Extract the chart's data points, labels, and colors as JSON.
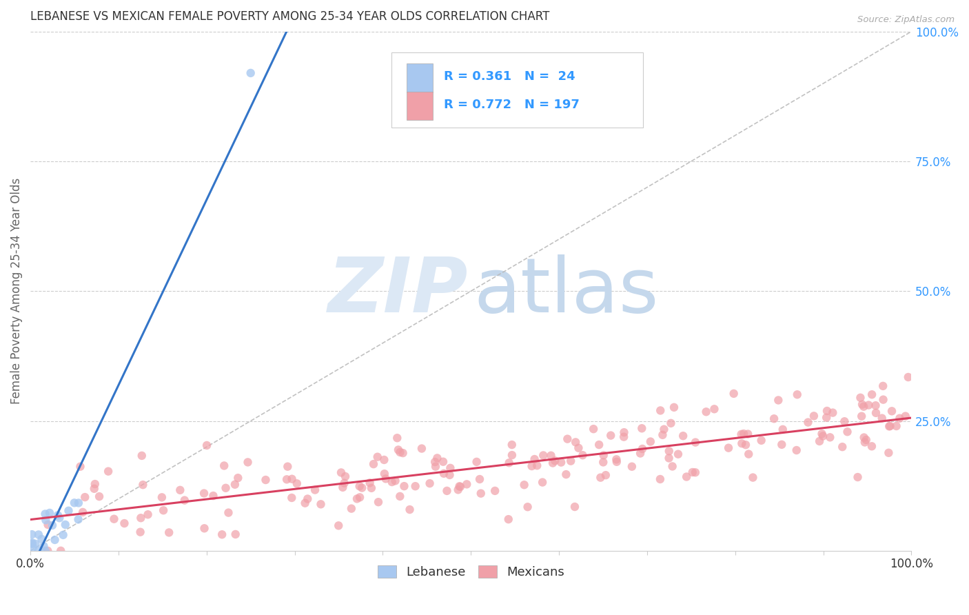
{
  "title": "LEBANESE VS MEXICAN FEMALE POVERTY AMONG 25-34 YEAR OLDS CORRELATION CHART",
  "source": "Source: ZipAtlas.com",
  "ylabel": "Female Poverty Among 25-34 Year Olds",
  "xlim": [
    0,
    1
  ],
  "ylim": [
    0,
    1
  ],
  "ytick_labels": [
    "100.0%",
    "75.0%",
    "50.0%",
    "25.0%"
  ],
  "ytick_values": [
    1.0,
    0.75,
    0.5,
    0.25
  ],
  "lebanese_color": "#A8C8F0",
  "mexican_color": "#F0A0A8",
  "lebanese_line_color": "#3375C8",
  "mexican_line_color": "#D84060",
  "ref_line_color": "#BBBBBB",
  "background_color": "#FFFFFF",
  "title_color": "#333333",
  "axis_label_color": "#666666",
  "right_tick_color": "#3399FF",
  "title_fontsize": 12,
  "watermark_zip_color": "#DCE8F5",
  "watermark_atlas_color": "#C5D8EC",
  "legend_box_color": "#EEEEEE",
  "legend_text_color": "#3399FF",
  "legend_r1": "R = 0.361",
  "legend_n1": "N =  24",
  "legend_r2": "R = 0.772",
  "legend_n2": "N = 197"
}
